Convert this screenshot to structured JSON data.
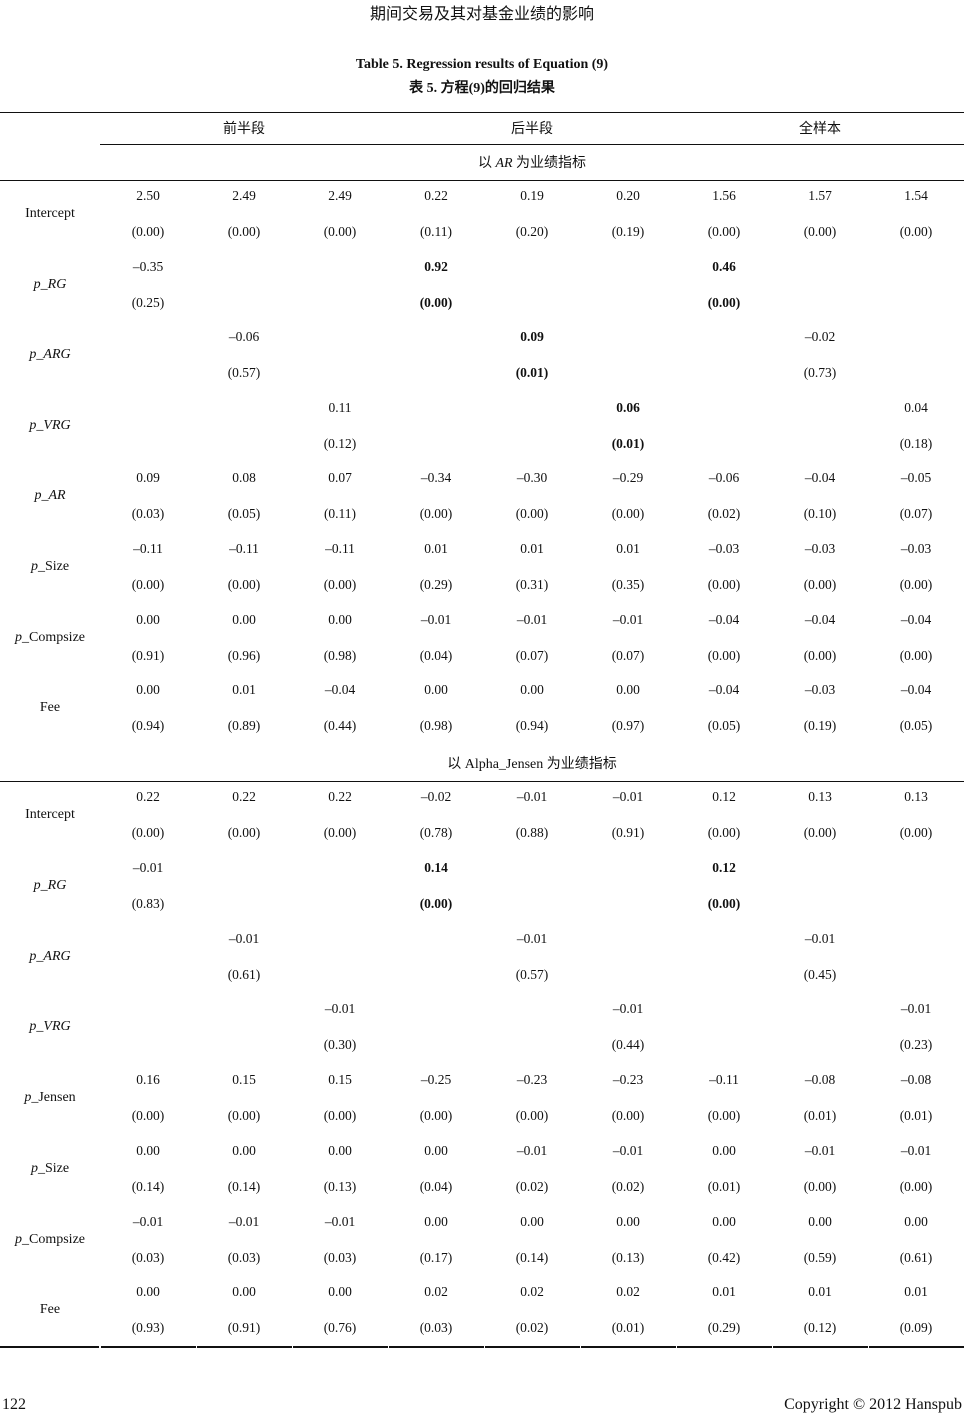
{
  "running_head": "期间交易及其对基金业绩的影响",
  "table_title_en": "Table 5. Regression results of Equation (9)",
  "table_title_cn": "表 5. 方程(9)的回归结果",
  "column_groups": [
    "前半段",
    "后半段",
    "全样本"
  ],
  "sections": [
    {
      "title_pre": "以 ",
      "title_var": "AR",
      "title_post": " 为业绩指标",
      "title_var_italic": true,
      "rows": [
        {
          "prefix": "",
          "name": "Intercept",
          "name_italic": false,
          "coef": [
            "2.50",
            "2.49",
            "2.49",
            "0.22",
            "0.19",
            "0.20",
            "1.56",
            "1.57",
            "1.54"
          ],
          "p": [
            "(0.00)",
            "(0.00)",
            "(0.00)",
            "(0.11)",
            "(0.20)",
            "(0.19)",
            "(0.00)",
            "(0.00)",
            "(0.00)"
          ],
          "bold": []
        },
        {
          "prefix": "p_",
          "name": "RG",
          "name_italic": true,
          "coef": [
            "–0.35",
            null,
            null,
            "0.92",
            null,
            null,
            "0.46",
            null,
            null
          ],
          "p": [
            "(0.25)",
            null,
            null,
            "(0.00)",
            null,
            null,
            "(0.00)",
            null,
            null
          ],
          "bold": [
            3,
            6
          ]
        },
        {
          "prefix": "p_",
          "name": "ARG",
          "name_italic": true,
          "coef": [
            null,
            "–0.06",
            null,
            null,
            "0.09",
            null,
            null,
            "–0.02",
            null
          ],
          "p": [
            null,
            "(0.57)",
            null,
            null,
            "(0.01)",
            null,
            null,
            "(0.73)",
            null
          ],
          "bold": [
            4
          ]
        },
        {
          "prefix": "p_",
          "name": "VRG",
          "name_italic": true,
          "coef": [
            null,
            null,
            "0.11",
            null,
            null,
            "0.06",
            null,
            null,
            "0.04"
          ],
          "p": [
            null,
            null,
            "(0.12)",
            null,
            null,
            "(0.01)",
            null,
            null,
            "(0.18)"
          ],
          "bold": [
            5
          ]
        },
        {
          "prefix": "p_",
          "name": "AR",
          "name_italic": true,
          "coef": [
            "0.09",
            "0.08",
            "0.07",
            "–0.34",
            "–0.30",
            "–0.29",
            "–0.06",
            "–0.04",
            "–0.05"
          ],
          "p": [
            "(0.03)",
            "(0.05)",
            "(0.11)",
            "(0.00)",
            "(0.00)",
            "(0.00)",
            "(0.02)",
            "(0.10)",
            "(0.07)"
          ],
          "bold": []
        },
        {
          "prefix": "p_",
          "name": "Size",
          "name_italic": false,
          "coef": [
            "–0.11",
            "–0.11",
            "–0.11",
            "0.01",
            "0.01",
            "0.01",
            "–0.03",
            "–0.03",
            "–0.03"
          ],
          "p": [
            "(0.00)",
            "(0.00)",
            "(0.00)",
            "(0.29)",
            "(0.31)",
            "(0.35)",
            "(0.00)",
            "(0.00)",
            "(0.00)"
          ],
          "bold": []
        },
        {
          "prefix": "p_",
          "name": "Compsize",
          "name_italic": false,
          "coef": [
            "0.00",
            "0.00",
            "0.00",
            "–0.01",
            "–0.01",
            "–0.01",
            "–0.04",
            "–0.04",
            "–0.04"
          ],
          "p": [
            "(0.91)",
            "(0.96)",
            "(0.98)",
            "(0.04)",
            "(0.07)",
            "(0.07)",
            "(0.00)",
            "(0.00)",
            "(0.00)"
          ],
          "bold": []
        },
        {
          "prefix": "",
          "name": "Fee",
          "name_italic": false,
          "coef": [
            "0.00",
            "0.01",
            "–0.04",
            "0.00",
            "0.00",
            "0.00",
            "–0.04",
            "–0.03",
            "–0.04"
          ],
          "p": [
            "(0.94)",
            "(0.89)",
            "(0.44)",
            "(0.98)",
            "(0.94)",
            "(0.97)",
            "(0.05)",
            "(0.19)",
            "(0.05)"
          ],
          "bold": []
        }
      ]
    },
    {
      "title_pre": "以 ",
      "title_var": "Alpha_Jensen",
      "title_post": " 为业绩指标",
      "title_var_italic": false,
      "rows": [
        {
          "prefix": "",
          "name": "Intercept",
          "name_italic": false,
          "coef": [
            "0.22",
            "0.22",
            "0.22",
            "–0.02",
            "–0.01",
            "–0.01",
            "0.12",
            "0.13",
            "0.13"
          ],
          "p": [
            "(0.00)",
            "(0.00)",
            "(0.00)",
            "(0.78)",
            "(0.88)",
            "(0.91)",
            "(0.00)",
            "(0.00)",
            "(0.00)"
          ],
          "bold": []
        },
        {
          "prefix": "p_",
          "name": "RG",
          "name_italic": true,
          "coef": [
            "–0.01",
            null,
            null,
            "0.14",
            null,
            null,
            "0.12",
            null,
            null
          ],
          "p": [
            "(0.83)",
            null,
            null,
            "(0.00)",
            null,
            null,
            "(0.00)",
            null,
            null
          ],
          "bold": [
            3,
            6
          ]
        },
        {
          "prefix": "p_",
          "name": "ARG",
          "name_italic": true,
          "coef": [
            null,
            "–0.01",
            null,
            null,
            "–0.01",
            null,
            null,
            "–0.01",
            null
          ],
          "p": [
            null,
            "(0.61)",
            null,
            null,
            "(0.57)",
            null,
            null,
            "(0.45)",
            null
          ],
          "bold": []
        },
        {
          "prefix": "p_",
          "name": "VRG",
          "name_italic": true,
          "coef": [
            null,
            null,
            "–0.01",
            null,
            null,
            "–0.01",
            null,
            null,
            "–0.01"
          ],
          "p": [
            null,
            null,
            "(0.30)",
            null,
            null,
            "(0.44)",
            null,
            null,
            "(0.23)"
          ],
          "bold": []
        },
        {
          "prefix": "p_",
          "name": "Jensen",
          "name_italic": false,
          "coef": [
            "0.16",
            "0.15",
            "0.15",
            "–0.25",
            "–0.23",
            "–0.23",
            "–0.11",
            "–0.08",
            "–0.08"
          ],
          "p": [
            "(0.00)",
            "(0.00)",
            "(0.00)",
            "(0.00)",
            "(0.00)",
            "(0.00)",
            "(0.00)",
            "(0.01)",
            "(0.01)"
          ],
          "bold": []
        },
        {
          "prefix": "p_",
          "name": "Size",
          "name_italic": false,
          "coef": [
            "0.00",
            "0.00",
            "0.00",
            "0.00",
            "–0.01",
            "–0.01",
            "0.00",
            "–0.01",
            "–0.01"
          ],
          "p": [
            "(0.14)",
            "(0.14)",
            "(0.13)",
            "(0.04)",
            "(0.02)",
            "(0.02)",
            "(0.01)",
            "(0.00)",
            "(0.00)"
          ],
          "bold": []
        },
        {
          "prefix": "p_",
          "name": "Compsize",
          "name_italic": false,
          "coef": [
            "–0.01",
            "–0.01",
            "–0.01",
            "0.00",
            "0.00",
            "0.00",
            "0.00",
            "0.00",
            "0.00"
          ],
          "p": [
            "(0.03)",
            "(0.03)",
            "(0.03)",
            "(0.17)",
            "(0.14)",
            "(0.13)",
            "(0.42)",
            "(0.59)",
            "(0.61)"
          ],
          "bold": []
        },
        {
          "prefix": "",
          "name": "Fee",
          "name_italic": false,
          "coef": [
            "0.00",
            "0.00",
            "0.00",
            "0.02",
            "0.02",
            "0.02",
            "0.01",
            "0.01",
            "0.01"
          ],
          "p": [
            "(0.93)",
            "(0.91)",
            "(0.76)",
            "(0.03)",
            "(0.02)",
            "(0.01)",
            "(0.29)",
            "(0.12)",
            "(0.09)"
          ],
          "bold": []
        }
      ]
    }
  ],
  "footer": {
    "page_number": "122",
    "copyright": "Copyright © 2012 Hanspub"
  }
}
